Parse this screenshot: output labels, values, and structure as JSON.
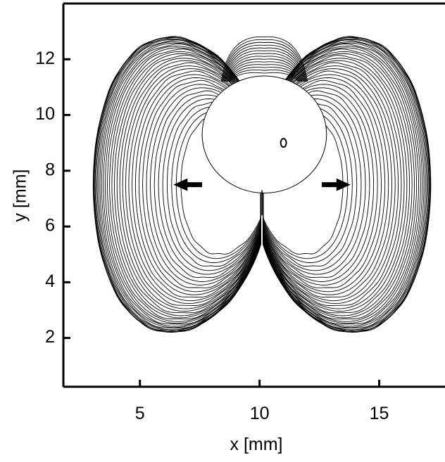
{
  "chart_data": {
    "type": "contour",
    "xlabel": "x [mm]",
    "ylabel": "y [mm]",
    "xlim": [
      1.8,
      17.75
    ],
    "ylim": [
      0.25,
      14
    ],
    "xticks": [
      5,
      10,
      15
    ],
    "yticks": [
      2,
      4,
      6,
      8,
      10,
      12
    ]
  }
}
